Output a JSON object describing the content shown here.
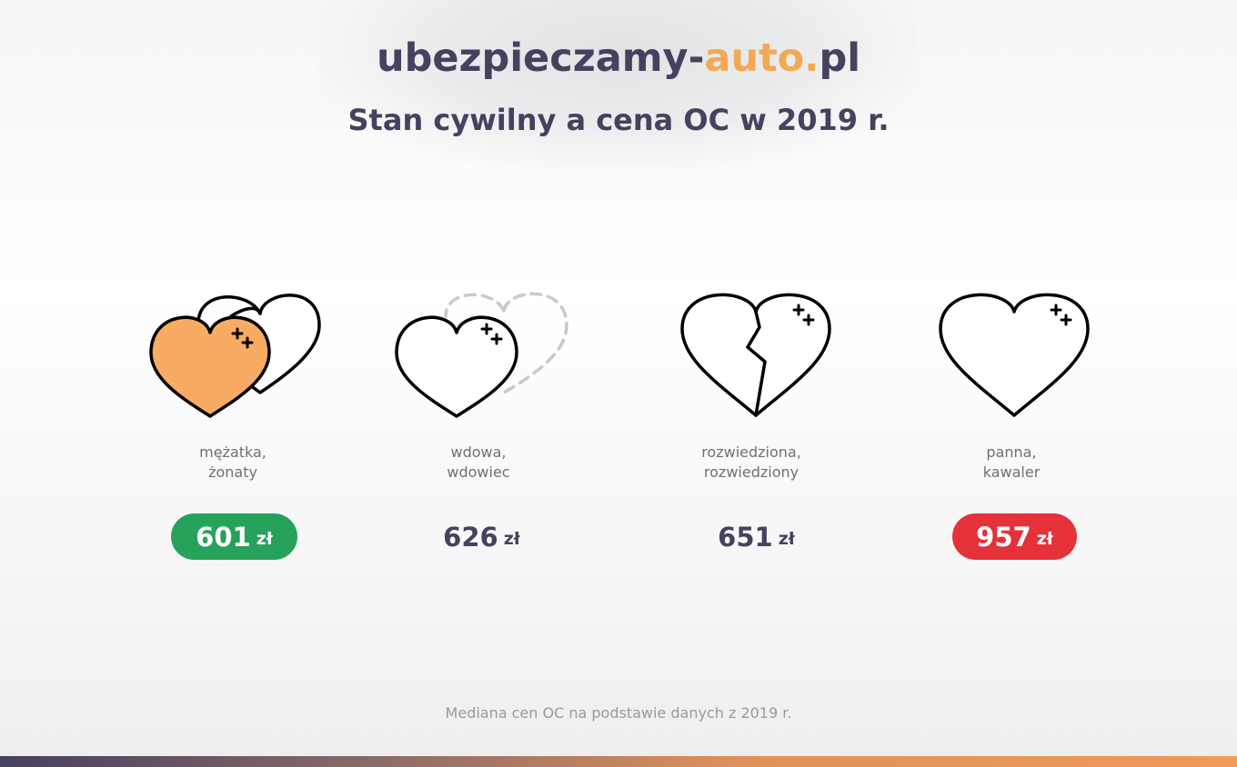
{
  "brand": {
    "prefix": "ubezpieczamy-",
    "accent": "auto.",
    "suffix": "pl"
  },
  "title": "Stan cywilny a cena OC w 2019 r.",
  "colors": {
    "brand_dark": "#47405f",
    "brand_accent": "#f2a955",
    "lowest_price": "#27a25b",
    "highest_price": "#e5313a",
    "heart_fill": "#f8ac63"
  },
  "items": [
    {
      "icon": "two-hearts-icon",
      "label_line1": "mężatka,",
      "label_line2": "żonaty",
      "price": "601",
      "currency": "zł",
      "highlight": "lowest"
    },
    {
      "icon": "widowed-heart-icon",
      "label_line1": "wdowa,",
      "label_line2": "wdowiec",
      "price": "626",
      "currency": "zł",
      "highlight": "none"
    },
    {
      "icon": "broken-heart-icon",
      "label_line1": "rozwiedziona,",
      "label_line2": "rozwiedziony",
      "price": "651",
      "currency": "zł",
      "highlight": "none"
    },
    {
      "icon": "single-heart-icon",
      "label_line1": "panna,",
      "label_line2": "kawaler",
      "price": "957",
      "currency": "zł",
      "highlight": "highest"
    }
  ],
  "footnote": "Mediana cen OC na podstawie danych z 2019 r."
}
